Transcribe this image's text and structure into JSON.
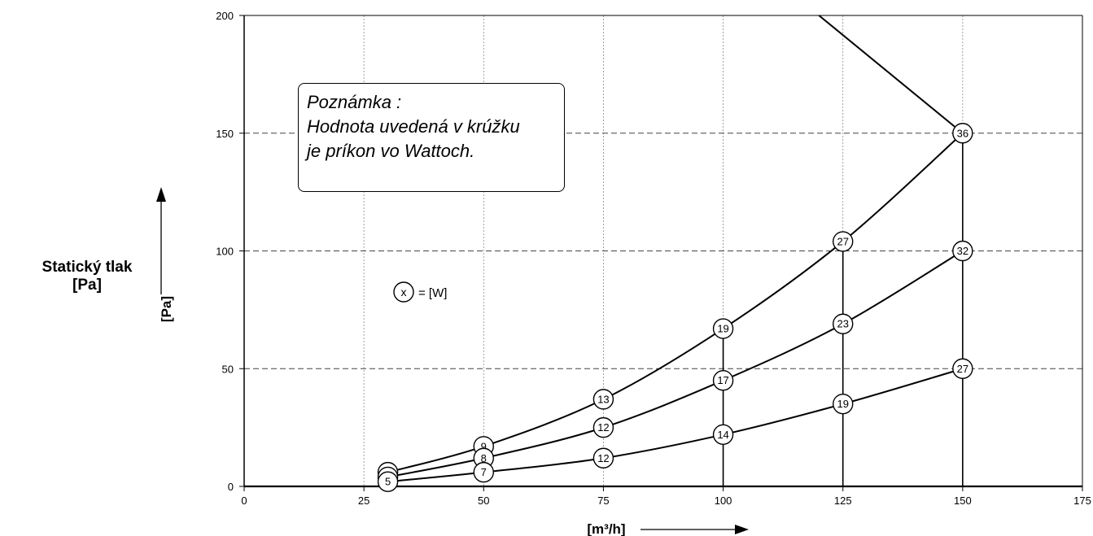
{
  "left_title": {
    "line1": "Statický tlak",
    "line2": "[Pa]"
  },
  "note": {
    "line1": "Poznámka :",
    "line2": "Hodnota uvedená v krúžku",
    "line3": "je príkon vo Wattoch."
  },
  "legend": {
    "symbol": "x",
    "text": "= [W]"
  },
  "chart_data": {
    "type": "line",
    "xlabel": "[m³/h]",
    "ylabel": "[Pa]",
    "xlim": [
      0,
      175
    ],
    "ylim": [
      0,
      200
    ],
    "x_ticks": [
      "0",
      "25",
      "50",
      "75",
      "100",
      "125",
      "150",
      "175"
    ],
    "y_ticks": [
      "0",
      "50",
      "100",
      "150",
      "200"
    ],
    "grid": true,
    "series": [
      {
        "points": [
          {
            "x": 30,
            "y": 6,
            "label": "6"
          },
          {
            "x": 50,
            "y": 17,
            "label": "9"
          },
          {
            "x": 75,
            "y": 37,
            "label": "13"
          },
          {
            "x": 100,
            "y": 67,
            "label": "19"
          },
          {
            "x": 125,
            "y": 104,
            "label": "27"
          },
          {
            "x": 150,
            "y": 150,
            "label": "36"
          }
        ]
      },
      {
        "points": [
          {
            "x": 30,
            "y": 4,
            "label": "6"
          },
          {
            "x": 50,
            "y": 12,
            "label": "8"
          },
          {
            "x": 75,
            "y": 25,
            "label": "12"
          },
          {
            "x": 100,
            "y": 45,
            "label": "17"
          },
          {
            "x": 125,
            "y": 69,
            "label": "23"
          },
          {
            "x": 150,
            "y": 100,
            "label": "32"
          }
        ]
      },
      {
        "points": [
          {
            "x": 30,
            "y": 2,
            "label": "5"
          },
          {
            "x": 50,
            "y": 6,
            "label": "7"
          },
          {
            "x": 75,
            "y": 12,
            "label": "12"
          },
          {
            "x": 100,
            "y": 22,
            "label": "14"
          },
          {
            "x": 125,
            "y": 35,
            "label": "19"
          },
          {
            "x": 150,
            "y": 50,
            "label": "27"
          }
        ]
      }
    ],
    "boundary_line": [
      {
        "x": 120,
        "y": 200
      },
      {
        "x": 150,
        "y": 150
      }
    ],
    "vertical_lines_x": [
      100,
      125,
      150
    ]
  }
}
